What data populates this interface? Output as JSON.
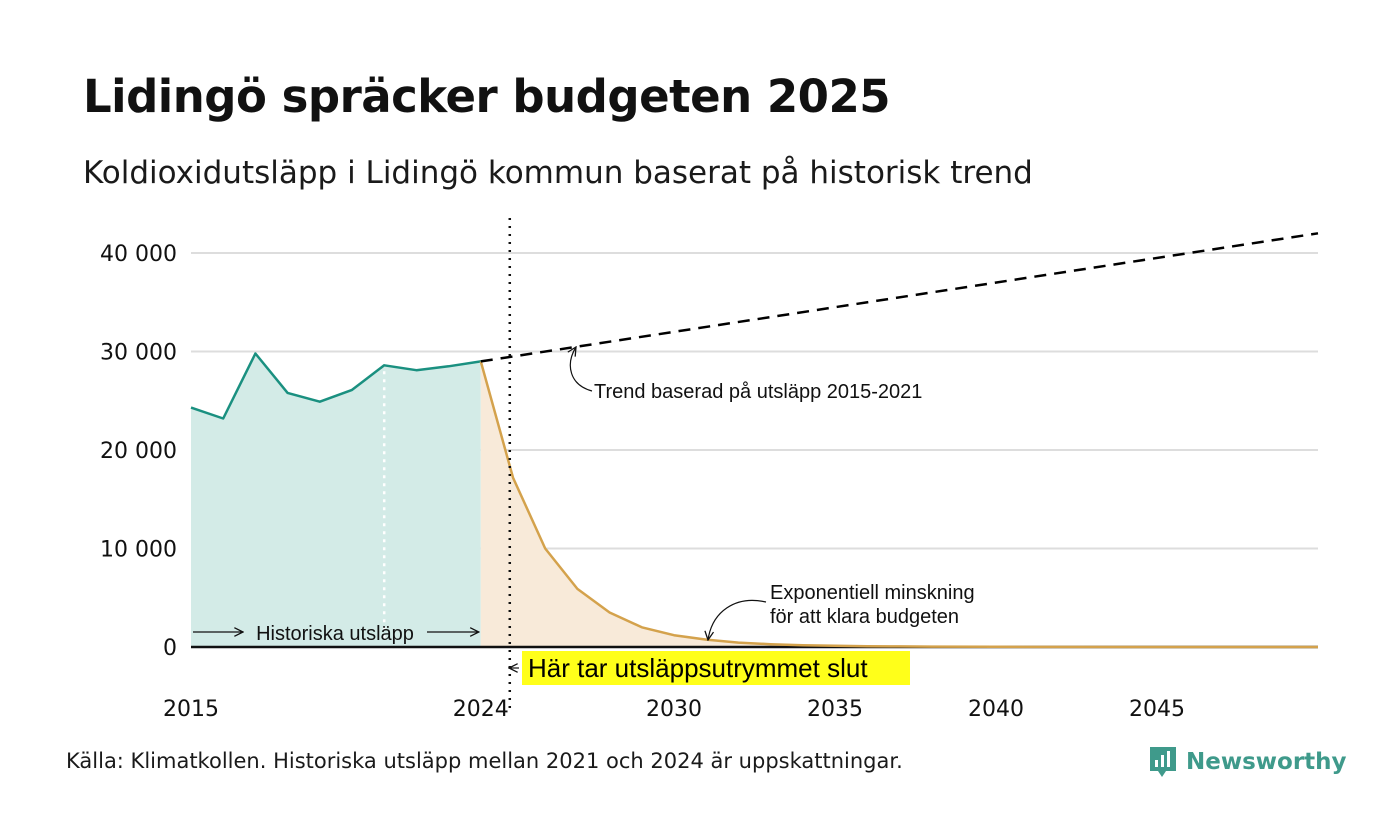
{
  "title": "Lidingö spräcker budgeten 2025",
  "subtitle": "Koldioxidutsläpp i Lidingö kommun baserat på historisk trend",
  "source": "Källa: Klimatkollen. Historiska utsläpp mellan 2021 och 2024 är uppskattningar.",
  "brand": {
    "name": "Newsworthy",
    "icon": "newsworthy-logo-icon",
    "color": "#3f9a8b"
  },
  "colors": {
    "historical_line": "#1a9080",
    "historical_fill": "#d3ebe7",
    "budget_line": "#d4a24c",
    "budget_fill": "#f8ead9",
    "trend_line": "#000000",
    "highlight": "#ffff1a",
    "grid": "#dddddd"
  },
  "chart_data": {
    "type": "area",
    "xlim": [
      2015,
      2050
    ],
    "ylim": [
      0,
      40000
    ],
    "x_ticks": [
      {
        "value": 2015,
        "label": "2015"
      },
      {
        "value": 2024,
        "label": "2024"
      },
      {
        "value": 2030,
        "label": "2030"
      },
      {
        "value": 2035,
        "label": "2035"
      },
      {
        "value": 2040,
        "label": "2040"
      },
      {
        "value": 2045,
        "label": "2045"
      }
    ],
    "y_ticks": [
      {
        "value": 0,
        "label": "0"
      },
      {
        "value": 10000,
        "label": "10 000"
      },
      {
        "value": 20000,
        "label": "20 000"
      },
      {
        "value": 30000,
        "label": "30 000"
      },
      {
        "value": 40000,
        "label": "40 000"
      }
    ],
    "grid": true,
    "series": [
      {
        "name": "Historiska utsläpp",
        "style": "solid-area",
        "x": [
          2015,
          2016,
          2017,
          2018,
          2019,
          2020,
          2021,
          2022,
          2023,
          2024
        ],
        "y": [
          24300,
          23200,
          29800,
          25800,
          24900,
          26100,
          28600,
          28100,
          28500,
          29000
        ]
      },
      {
        "name": "Exponentiell minskning för att klara budgeten",
        "style": "solid-area",
        "x": [
          2024,
          2025,
          2026,
          2027,
          2028,
          2029,
          2030,
          2031,
          2032,
          2033,
          2034,
          2035,
          2036,
          2037,
          2038,
          2040,
          2045,
          2050
        ],
        "y": [
          29000,
          17200,
          10000,
          5900,
          3500,
          2000,
          1200,
          750,
          450,
          280,
          180,
          120,
          80,
          60,
          40,
          20,
          5,
          0
        ]
      },
      {
        "name": "Trend baserad på utsläpp 2015-2021",
        "style": "dashed",
        "x": [
          2024,
          2050
        ],
        "y": [
          29000,
          42000
        ]
      }
    ],
    "markers": [
      {
        "x": 2024.9,
        "style": "dotted-vertical",
        "label": "Här tar utsläppsutrymmet slut"
      },
      {
        "x": 2021,
        "style": "dotted-vertical-white",
        "label": ""
      }
    ],
    "annotations": {
      "trend": "Trend baserad på utsläpp 2015-2021",
      "historical": "Historiska utsläpp",
      "decline_line1": "Exponentiell minskning",
      "decline_line2": "för att klara budgeten",
      "budget_end": "Här tar utsläppsutrymmet slut"
    }
  }
}
